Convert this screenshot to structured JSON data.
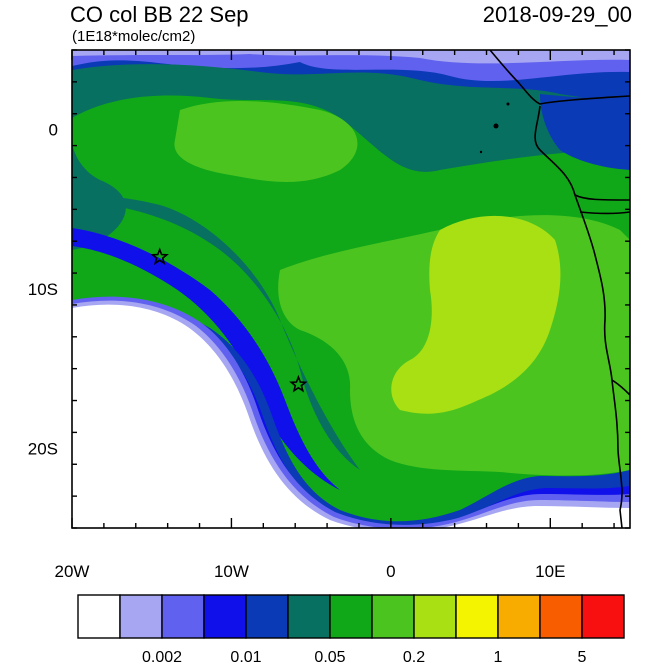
{
  "title": {
    "left": "CO col BB 22 Sep",
    "subtitle": "(1E18*molec/cm2)",
    "right": "2018-09-29_00"
  },
  "axes": {
    "x_ticks": [
      {
        "lon": -20,
        "label": "20W"
      },
      {
        "lon": -10,
        "label": "10W"
      },
      {
        "lon": 0,
        "label": "0"
      },
      {
        "lon": 10,
        "label": "10E"
      }
    ],
    "y_ticks": [
      {
        "lat": 0,
        "label": "0"
      },
      {
        "lat": -10,
        "label": "10S"
      },
      {
        "lat": -20,
        "label": "20S"
      }
    ],
    "lon_range": [
      -20,
      15
    ],
    "lat_range": [
      -25,
      5
    ]
  },
  "colorbar": {
    "colors": [
      "#ffffff",
      "#a6a6f2",
      "#6161f0",
      "#1010ea",
      "#0a3ab5",
      "#087060",
      "#10a818",
      "#4cc420",
      "#a8e014",
      "#f4f400",
      "#f8ac00",
      "#f85e00",
      "#f81010"
    ],
    "labels": [
      {
        "after_box": 2,
        "text": "0.002"
      },
      {
        "after_box": 4,
        "text": "0.01"
      },
      {
        "after_box": 6,
        "text": "0.05"
      },
      {
        "after_box": 8,
        "text": "0.2"
      },
      {
        "after_box": 10,
        "text": "1"
      },
      {
        "after_box": 12,
        "text": "5"
      }
    ]
  },
  "markers": [
    {
      "name": "star-marker-1",
      "lon": -14.5,
      "lat": -8
    },
    {
      "name": "star-marker-2",
      "lon": -5.8,
      "lat": -16
    }
  ]
}
